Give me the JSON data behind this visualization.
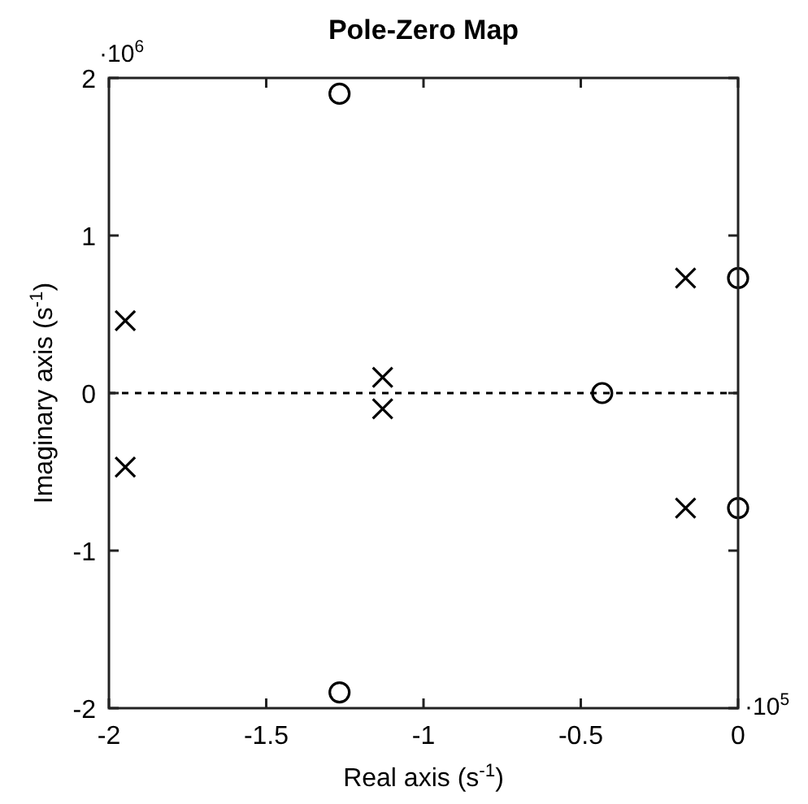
{
  "chart_data": {
    "type": "scatter",
    "title": "Pole-Zero Map",
    "xlabel": "Real axis (s$^{-1}$)",
    "ylabel": "Imaginary axis (s$^{-1}$)",
    "xlim": [
      -2,
      0
    ],
    "xticks": [
      -2,
      -1.5,
      -1,
      -0.5,
      0
    ],
    "ylim": [
      -2,
      2
    ],
    "yticks": [
      -2,
      -1,
      0,
      1,
      2
    ],
    "series": [
      {
        "color": "#000000",
        "marker": "cross",
        "x": [
          -1.948,
          -1.948,
          -1.13,
          -1.13,
          -0.167,
          -0.167
        ],
        "values": [
          0.46,
          -0.47,
          0.1,
          -0.1,
          0.73,
          -0.73
        ]
      },
      {
        "color": "#000000",
        "marker": "circle",
        "x": [
          -1.267,
          -1.267,
          -0.432,
          0,
          0
        ],
        "values": [
          1.9,
          -1.9,
          0,
          0.73,
          -0.73
        ]
      }
    ],
    "ref_lines": [
      {
        "axis": "y",
        "value": 0,
        "color": "#000000",
        "line_style": "dashed"
      }
    ],
    "annotations": [
      "·10$^{6}$",
      "·10$^{5}$"
    ]
  }
}
